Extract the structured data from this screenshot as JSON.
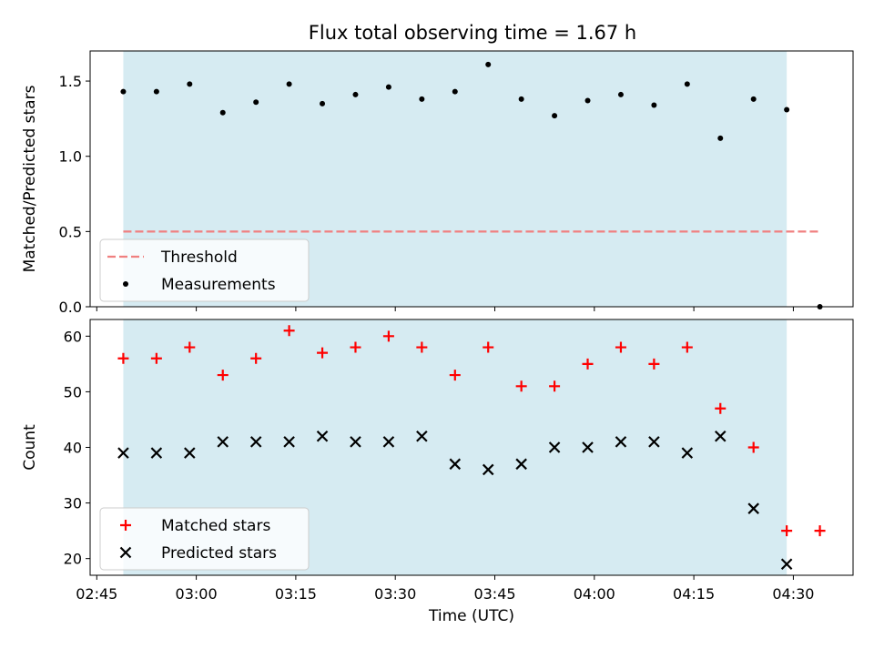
{
  "chart_data": [
    {
      "type": "scatter",
      "title": "Flux total observing time = 1.67 h",
      "ylabel": "Matched/Predicted stars",
      "ylim": [
        0,
        1.7
      ],
      "yticks": [
        "0.0",
        "0.5",
        "1.0",
        "1.5"
      ],
      "shaded_span": [
        "02:49",
        "04:29"
      ],
      "shade_color": "#add8e6",
      "threshold": {
        "name": "Threshold",
        "value": 0.5,
        "x_start": "02:49",
        "x_end": "04:34",
        "color": "#f08080"
      },
      "legend_position": "lower-left",
      "series": [
        {
          "name": "Measurements",
          "marker": "dot",
          "color": "#000000",
          "x": [
            "02:49",
            "02:54",
            "02:59",
            "03:04",
            "03:09",
            "03:14",
            "03:19",
            "03:24",
            "03:29",
            "03:34",
            "03:39",
            "03:44",
            "03:49",
            "03:54",
            "03:59",
            "04:04",
            "04:09",
            "04:14",
            "04:19",
            "04:24",
            "04:29",
            "04:34"
          ],
          "values": [
            1.43,
            1.43,
            1.48,
            1.29,
            1.36,
            1.48,
            1.35,
            1.41,
            1.46,
            1.38,
            1.43,
            1.61,
            1.38,
            1.27,
            1.37,
            1.41,
            1.34,
            1.48,
            1.12,
            1.38,
            1.31,
            0.0
          ]
        }
      ]
    },
    {
      "type": "scatter",
      "xlabel": "Time (UTC)",
      "ylabel": "Count",
      "xlim": [
        "02:44",
        "04:39"
      ],
      "ylim": [
        17,
        63
      ],
      "xticks": [
        "02:45",
        "03:00",
        "03:15",
        "03:30",
        "03:45",
        "04:00",
        "04:15",
        "04:30"
      ],
      "yticks": [
        "20",
        "30",
        "40",
        "50",
        "60"
      ],
      "shaded_span": [
        "02:49",
        "04:29"
      ],
      "shade_color": "#add8e6",
      "legend_position": "lower-left",
      "series": [
        {
          "name": "Matched stars",
          "marker": "plus",
          "color": "#ff0000",
          "x": [
            "02:49",
            "02:54",
            "02:59",
            "03:04",
            "03:09",
            "03:14",
            "03:19",
            "03:24",
            "03:29",
            "03:34",
            "03:39",
            "03:44",
            "03:49",
            "03:54",
            "03:59",
            "04:04",
            "04:09",
            "04:14",
            "04:19",
            "04:24",
            "04:29",
            "04:34"
          ],
          "values": [
            56,
            56,
            58,
            53,
            56,
            61,
            57,
            58,
            60,
            58,
            53,
            58,
            51,
            51,
            55,
            58,
            55,
            58,
            47,
            40,
            25,
            25
          ]
        },
        {
          "name": "Predicted stars",
          "marker": "x",
          "color": "#000000",
          "x": [
            "02:49",
            "02:54",
            "02:59",
            "03:04",
            "03:09",
            "03:14",
            "03:19",
            "03:24",
            "03:29",
            "03:34",
            "03:39",
            "03:44",
            "03:49",
            "03:54",
            "03:59",
            "04:04",
            "04:09",
            "04:14",
            "04:19",
            "04:24",
            "04:29"
          ],
          "values": [
            39,
            39,
            39,
            41,
            41,
            41,
            42,
            41,
            41,
            42,
            37,
            36,
            37,
            40,
            40,
            41,
            41,
            39,
            42,
            29,
            19
          ]
        }
      ]
    }
  ]
}
